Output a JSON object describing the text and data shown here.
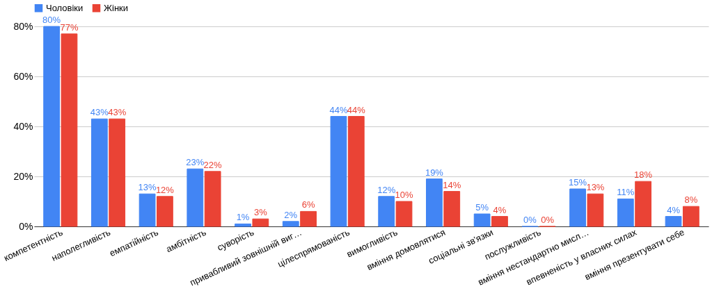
{
  "chart_data": {
    "type": "bar",
    "categories": [
      "компетентність",
      "наполегливість",
      "емпатійність",
      "амбітність",
      "суворість",
      "привабливий зовнішній виг…",
      "цілеспрямованість",
      "вимогливість",
      "вміння домовлятися",
      "соціальні зв'язки",
      "послужливість",
      "вміння нестандартно мисл…",
      "впевненість у власних силах",
      "вміння презентувати себе"
    ],
    "series": [
      {
        "name": "Чоловіки",
        "color": "#4285f4",
        "values": [
          80,
          43,
          13,
          23,
          1,
          2,
          44,
          12,
          19,
          5,
          0,
          15,
          11,
          4
        ],
        "value_labels": [
          "80%",
          "43%",
          "13%",
          "23%",
          "1%",
          "2%",
          "44%",
          "12%",
          "19%",
          "5%",
          "0%",
          "15%",
          "11%",
          "4%"
        ]
      },
      {
        "name": "Жінки",
        "color": "#ea4335",
        "values": [
          77,
          43,
          12,
          22,
          3,
          6,
          44,
          10,
          14,
          4,
          0,
          13,
          18,
          8
        ],
        "value_labels": [
          "77%",
          "43%",
          "12%",
          "22%",
          "3%",
          "6%",
          "44%",
          "10%",
          "14%",
          "4%",
          "0%",
          "13%",
          "18%",
          "8%"
        ]
      }
    ],
    "ylim": [
      0,
      80
    ],
    "yticks": [
      {
        "value": 0,
        "label": "0%"
      },
      {
        "value": 20,
        "label": "20%"
      },
      {
        "value": 40,
        "label": "40%"
      },
      {
        "value": 60,
        "label": "60%"
      },
      {
        "value": 80,
        "label": "80%"
      }
    ],
    "grid": "y",
    "legend": "top"
  }
}
